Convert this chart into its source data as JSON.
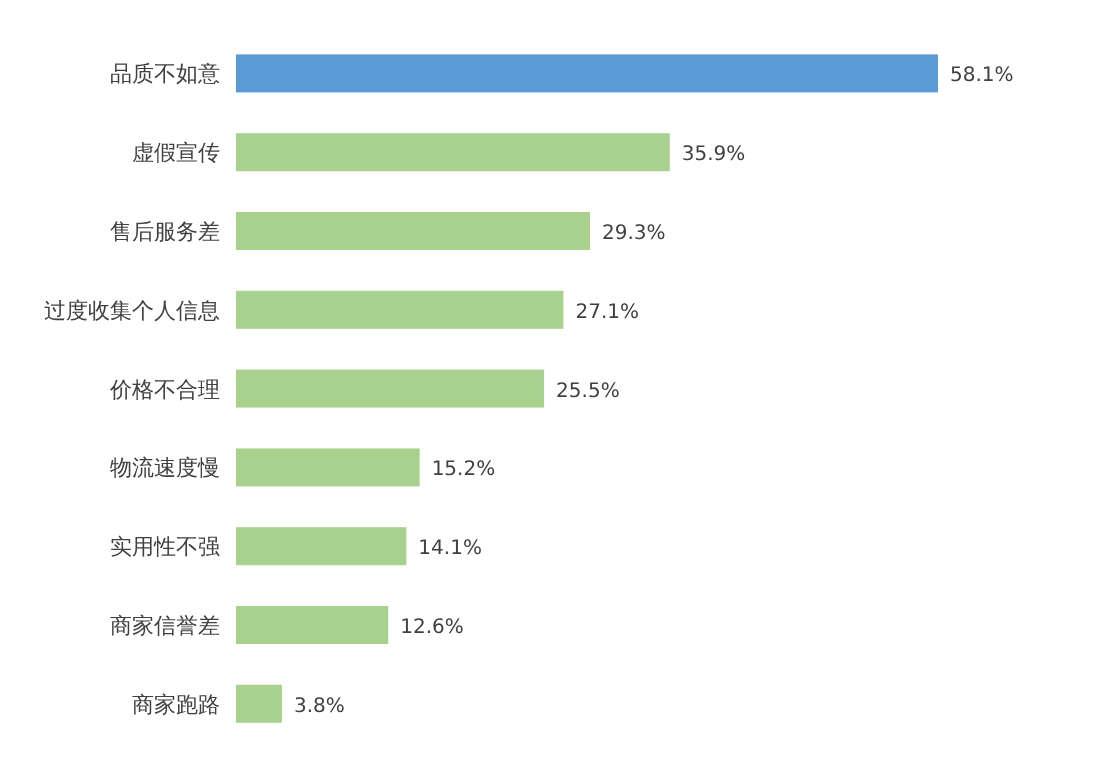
{
  "chart_data": {
    "type": "bar",
    "orientation": "horizontal",
    "categories": [
      "品质不如意",
      "虚假宣传",
      "售后服务差",
      "过度收集个人信息",
      "价格不合理",
      "物流速度慢",
      "实用性不强",
      "商家信誉差",
      "商家跑路"
    ],
    "values": [
      58.1,
      35.9,
      29.3,
      27.1,
      25.5,
      15.2,
      14.1,
      12.6,
      3.8
    ],
    "colors": [
      "#5b9bd5",
      "#a9d18e",
      "#a9d18e",
      "#a9d18e",
      "#a9d18e",
      "#a9d18e",
      "#a9d18e",
      "#a9d18e",
      "#a9d18e"
    ],
    "value_labels": [
      "58.1%",
      "35.9%",
      "29.3%",
      "27.1%",
      "25.5%",
      "15.2%",
      "14.1%",
      "12.6%",
      "3.8%"
    ],
    "xlim": [
      0,
      58.1
    ]
  }
}
